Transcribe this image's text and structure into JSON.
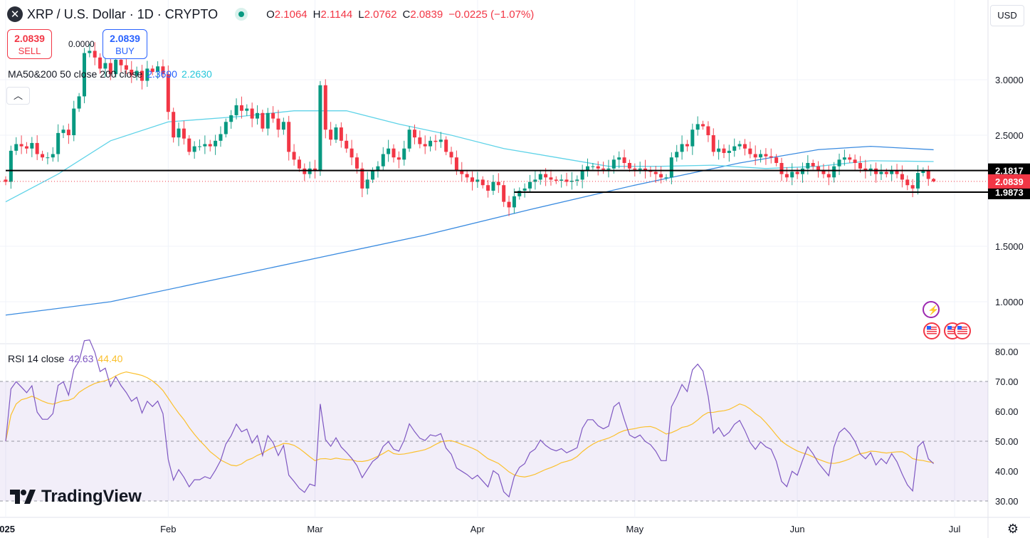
{
  "header": {
    "symbol": "XRP / U.S. Dollar · 1D · CRYPTO",
    "open_label": "O",
    "open": "2.1064",
    "high_label": "H",
    "high": "2.1144",
    "low_label": "L",
    "low": "2.0762",
    "close_label": "C",
    "close": "2.0839",
    "change": "−0.0225 (−1.07%)"
  },
  "trade": {
    "sell_price": "2.0839",
    "sell_label": "SELL",
    "buy_price": "2.0839",
    "buy_label": "BUY",
    "spread": "0.0000"
  },
  "ma_legend": {
    "name": "MA50&200 50 close 200 close",
    "value1": "2.3690",
    "value2": "2.2630",
    "color1": "#2962ff",
    "color2": "#26c6da"
  },
  "rsi_legend": {
    "name": "RSI 14 close",
    "value1": "42.63",
    "value2": "44.40",
    "color1": "#7e57c2",
    "color2": "#fbc02d"
  },
  "currency_button": "USD",
  "collapse_icon": "chevron-up-icon",
  "watermark": "TradingView",
  "chart_data": {
    "type": "candlestick",
    "start_date": "2025-01-01",
    "closes": [
      2.08,
      2.36,
      2.42,
      2.4,
      2.38,
      2.43,
      2.33,
      2.3,
      2.3,
      2.33,
      2.52,
      2.55,
      2.5,
      2.74,
      2.85,
      3.24,
      3.26,
      3.2,
      3.1,
      3.15,
      3.05,
      3.18,
      3.13,
      3.09,
      3.04,
      3.08,
      2.99,
      3.1,
      3.07,
      3.12,
      3.05,
      2.71,
      2.48,
      2.56,
      2.47,
      2.35,
      2.4,
      2.4,
      2.42,
      2.4,
      2.45,
      2.51,
      2.62,
      2.68,
      2.77,
      2.72,
      2.74,
      2.65,
      2.7,
      2.56,
      2.7,
      2.65,
      2.55,
      2.62,
      2.35,
      2.28,
      2.2,
      2.15,
      2.2,
      2.18,
      2.95,
      2.55,
      2.46,
      2.57,
      2.45,
      2.38,
      2.3,
      2.2,
      2.02,
      2.1,
      2.18,
      2.22,
      2.33,
      2.38,
      2.3,
      2.28,
      2.38,
      2.55,
      2.48,
      2.42,
      2.4,
      2.45,
      2.44,
      2.46,
      2.35,
      2.3,
      2.18,
      2.15,
      2.12,
      2.08,
      2.1,
      2.05,
      2.0,
      2.08,
      2.05,
      1.9,
      1.85,
      1.95,
      2.0,
      2.02,
      2.08,
      2.1,
      2.15,
      2.12,
      2.1,
      2.09,
      2.1,
      2.08,
      2.09,
      2.1,
      2.18,
      2.22,
      2.22,
      2.2,
      2.19,
      2.2,
      2.28,
      2.3,
      2.25,
      2.2,
      2.19,
      2.2,
      2.18,
      2.17,
      2.15,
      2.12,
      2.12,
      2.3,
      2.35,
      2.42,
      2.4,
      2.55,
      2.6,
      2.58,
      2.5,
      2.35,
      2.38,
      2.34,
      2.36,
      2.4,
      2.42,
      2.38,
      2.33,
      2.3,
      2.33,
      2.31,
      2.3,
      2.25,
      2.15,
      2.12,
      2.17,
      2.15,
      2.2,
      2.25,
      2.22,
      2.18,
      2.15,
      2.12,
      2.22,
      2.28,
      2.3,
      2.28,
      2.25,
      2.2,
      2.18,
      2.2,
      2.15,
      2.17,
      2.15,
      2.18,
      2.15,
      2.1,
      2.05,
      2.02,
      2.16,
      2.18,
      2.1064,
      2.0839
    ],
    "ma_fast": [
      [
        0,
        1.9
      ],
      [
        10,
        2.15
      ],
      [
        20,
        2.45
      ],
      [
        31,
        2.62
      ],
      [
        45,
        2.67
      ],
      [
        55,
        2.72
      ],
      [
        65,
        2.72
      ],
      [
        75,
        2.6
      ],
      [
        85,
        2.5
      ],
      [
        95,
        2.38
      ],
      [
        105,
        2.3
      ],
      [
        115,
        2.22
      ],
      [
        125,
        2.22
      ],
      [
        135,
        2.23
      ],
      [
        145,
        2.2
      ],
      [
        155,
        2.22
      ],
      [
        165,
        2.27
      ],
      [
        177,
        2.263
      ]
    ],
    "ma_slow": [
      [
        0,
        0.88
      ],
      [
        20,
        1.0
      ],
      [
        40,
        1.2
      ],
      [
        60,
        1.4
      ],
      [
        80,
        1.6
      ],
      [
        100,
        1.83
      ],
      [
        120,
        2.05
      ],
      [
        140,
        2.25
      ],
      [
        155,
        2.37
      ],
      [
        165,
        2.4
      ],
      [
        177,
        2.369
      ]
    ],
    "price_ticks": [
      "3.0000",
      "2.5000",
      "1.5000",
      "1.0000"
    ],
    "price_levels": [
      {
        "label": "2.1817",
        "value": 2.1817,
        "start_day": 0
      },
      {
        "label": "1.9873",
        "value": 1.9873,
        "start_day": 97
      }
    ],
    "last_price": {
      "label": "2.0839",
      "value": 2.0839
    },
    "rsi_ticks": [
      "80.00",
      "70.00",
      "60.00",
      "50.00",
      "40.00",
      "30.00"
    ],
    "rsi_band": [
      30,
      70
    ],
    "x_ticks": [
      {
        "label": "2025",
        "day": 0
      },
      {
        "label": "Feb",
        "day": 31
      },
      {
        "label": "Mar",
        "day": 59
      },
      {
        "label": "Apr",
        "day": 90
      },
      {
        "label": "May",
        "day": 120
      },
      {
        "label": "Jun",
        "day": 151
      },
      {
        "label": "Jul",
        "day": 181
      }
    ],
    "up_color": "#089981",
    "down_color": "#f23645"
  }
}
